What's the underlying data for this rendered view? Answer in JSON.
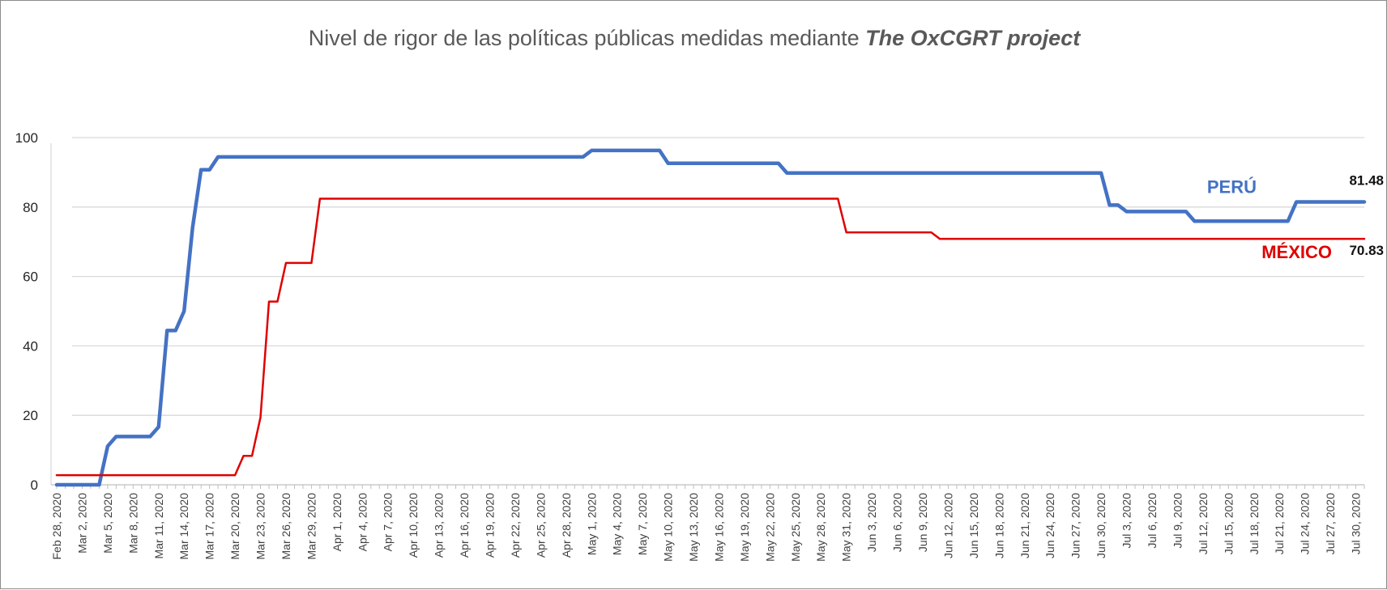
{
  "chart_data": {
    "type": "line",
    "title": "Nivel de rigor de las políticas públicas medidas mediante ",
    "title_emphasis": "The OxCGRT project",
    "x_start": "2020-02-28",
    "x_end": "2020-07-31",
    "x_tick_labels": [
      "Feb 28, 2020",
      "Mar 2, 2020",
      "Mar 5, 2020",
      "Mar 8, 2020",
      "Mar 11, 2020",
      "Mar 14, 2020",
      "Mar 17, 2020",
      "Mar 20, 2020",
      "Mar 23, 2020",
      "Mar 26, 2020",
      "Mar 29, 2020",
      "Apr 1, 2020",
      "Apr 4, 2020",
      "Apr 7, 2020",
      "Apr 10, 2020",
      "Apr 13, 2020",
      "Apr 16, 2020",
      "Apr 19, 2020",
      "Apr 22, 2020",
      "Apr 25, 2020",
      "Apr 28, 2020",
      "May 1, 2020",
      "May 4, 2020",
      "May 7, 2020",
      "May 10, 2020",
      "May 13, 2020",
      "May 16, 2020",
      "May 19, 2020",
      "May 22, 2020",
      "May 25, 2020",
      "May 28, 2020",
      "May 31, 2020",
      "Jun 3, 2020",
      "Jun 6, 2020",
      "Jun 9, 2020",
      "Jun 12, 2020",
      "Jun 15, 2020",
      "Jun 18, 2020",
      "Jun 21, 2020",
      "Jun 24, 2020",
      "Jun 27, 2020",
      "Jun 30, 2020",
      "Jul 3, 2020",
      "Jul 6, 2020",
      "Jul 9, 2020",
      "Jul 12, 2020",
      "Jul 15, 2020",
      "Jul 18, 2020",
      "Jul 21, 2020",
      "Jul 24, 2020",
      "Jul 27, 2020",
      "Jul 30, 2020"
    ],
    "ylim": [
      0,
      100
    ],
    "y_ticks": [
      0,
      20,
      40,
      60,
      80,
      100
    ],
    "grid": "horizontal",
    "series": [
      {
        "name": "PERÚ",
        "color": "#4472c4",
        "end_label": "81.48",
        "points": [
          [
            "2020-02-28",
            0
          ],
          [
            "2020-03-04",
            0
          ],
          [
            "2020-03-05",
            11.11
          ],
          [
            "2020-03-06",
            13.89
          ],
          [
            "2020-03-10",
            13.89
          ],
          [
            "2020-03-11",
            16.67
          ],
          [
            "2020-03-12",
            44.44
          ],
          [
            "2020-03-13",
            44.44
          ],
          [
            "2020-03-14",
            50
          ],
          [
            "2020-03-15",
            74.07
          ],
          [
            "2020-03-16",
            90.74
          ],
          [
            "2020-03-17",
            90.74
          ],
          [
            "2020-03-18",
            94.44
          ],
          [
            "2020-04-30",
            94.44
          ],
          [
            "2020-05-01",
            96.3
          ],
          [
            "2020-05-09",
            96.3
          ],
          [
            "2020-05-10",
            92.59
          ],
          [
            "2020-05-23",
            92.59
          ],
          [
            "2020-05-24",
            89.81
          ],
          [
            "2020-06-30",
            89.81
          ],
          [
            "2020-07-01",
            80.56
          ],
          [
            "2020-07-02",
            80.56
          ],
          [
            "2020-07-03",
            78.7
          ],
          [
            "2020-07-10",
            78.7
          ],
          [
            "2020-07-11",
            75.93
          ],
          [
            "2020-07-22",
            75.93
          ],
          [
            "2020-07-23",
            81.48
          ],
          [
            "2020-07-31",
            81.48
          ]
        ]
      },
      {
        "name": "MÉXICO",
        "color": "#e00000",
        "end_label": "70.83",
        "points": [
          [
            "2020-02-28",
            2.78
          ],
          [
            "2020-03-20",
            2.78
          ],
          [
            "2020-03-21",
            8.33
          ],
          [
            "2020-03-22",
            8.33
          ],
          [
            "2020-03-23",
            19.44
          ],
          [
            "2020-03-24",
            52.78
          ],
          [
            "2020-03-25",
            52.78
          ],
          [
            "2020-03-26",
            63.89
          ],
          [
            "2020-03-29",
            63.89
          ],
          [
            "2020-03-30",
            82.41
          ],
          [
            "2020-05-30",
            82.41
          ],
          [
            "2020-05-31",
            72.69
          ],
          [
            "2020-06-10",
            72.69
          ],
          [
            "2020-06-11",
            70.83
          ],
          [
            "2020-07-31",
            70.83
          ]
        ]
      }
    ]
  }
}
